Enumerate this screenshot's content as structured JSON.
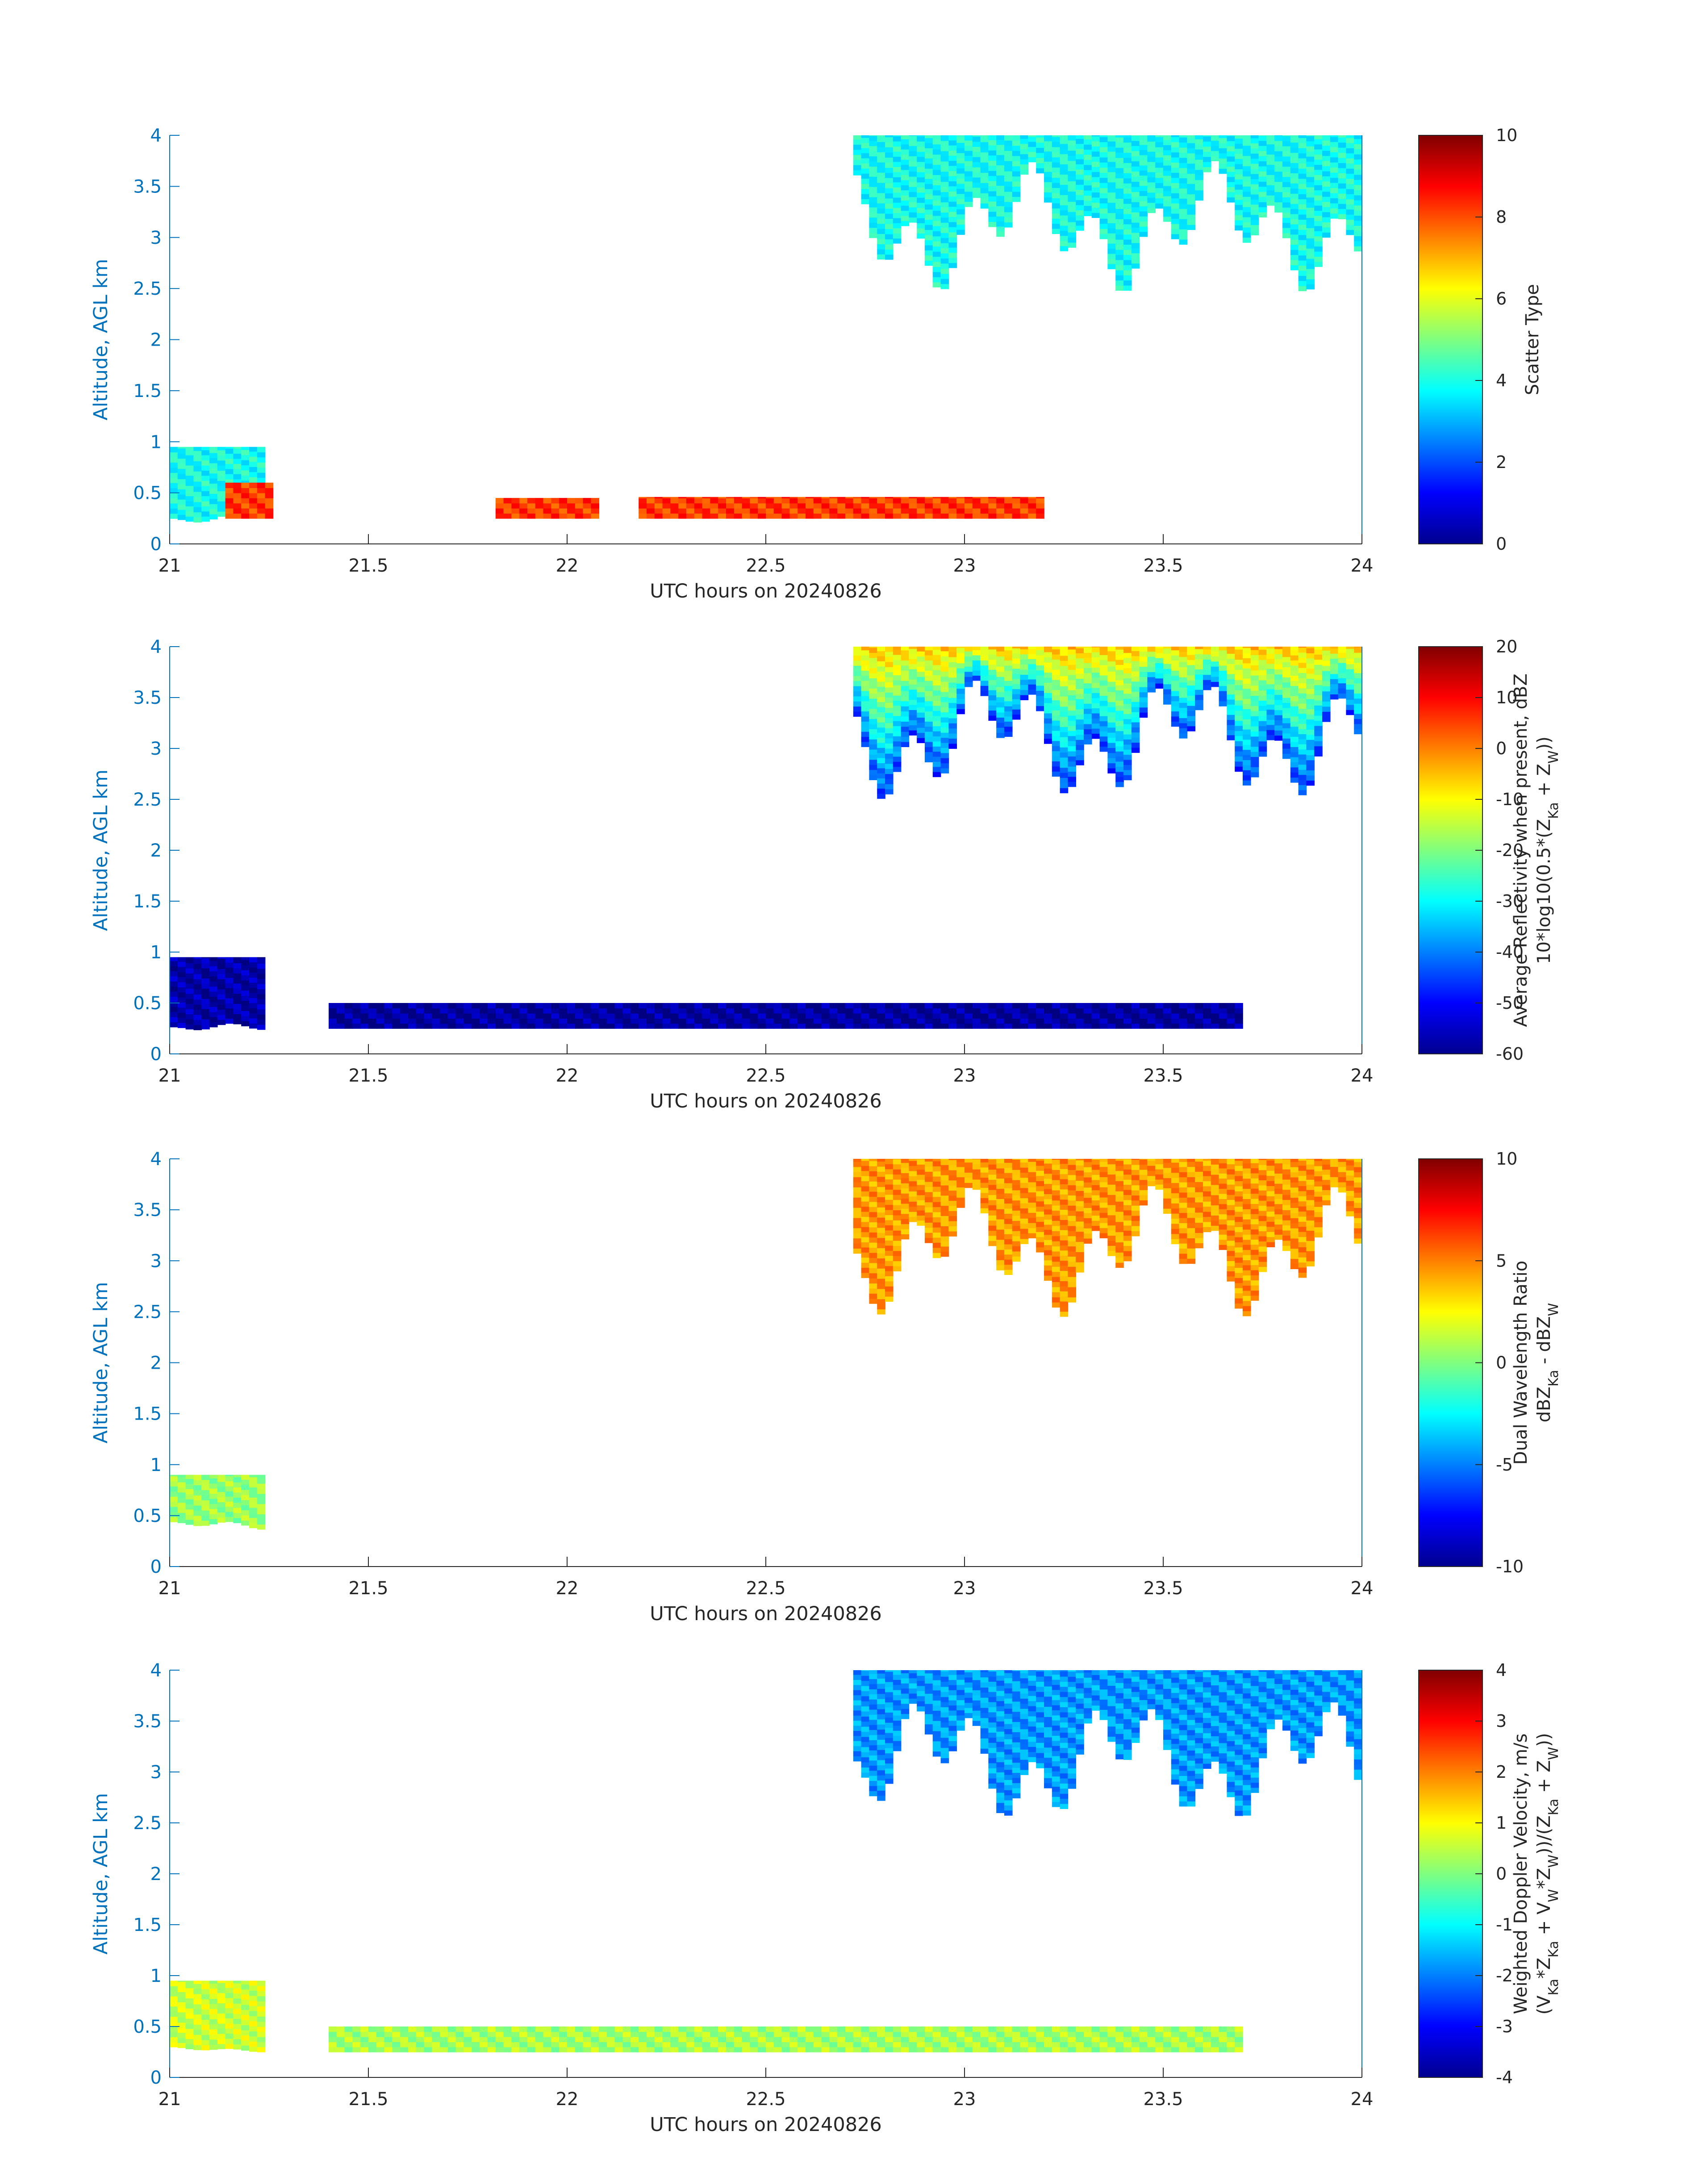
{
  "figure": {
    "panels": [
      {
        "id": "scatter-type",
        "ylabel": "Altitude, AGL km",
        "xlabel": "UTC hours on 20240826",
        "colorbar_label_lines": [
          "Scatter Type"
        ],
        "chart_data": {
          "type": "heatmap",
          "xlim": [
            21,
            24
          ],
          "ylim": [
            0,
            4
          ],
          "x_ticks": [
            "21",
            "21.5",
            "22",
            "22.5",
            "23",
            "23.5",
            "24"
          ],
          "y_ticks": [
            "0",
            "0.5",
            "1",
            "1.5",
            "2",
            "2.5",
            "3",
            "3.5",
            "4"
          ],
          "clim": [
            0,
            10
          ],
          "colorbar_ticks": [
            "0",
            "2",
            "4",
            "6",
            "8",
            "10"
          ],
          "colormap": "jet",
          "regions": [
            {
              "name": "upper-cloud",
              "x": [
                22.72,
                24.0
              ],
              "top": 4.0,
              "bottom_min": 2.45,
              "bottom_max": 3.75,
              "value": 3.9
            },
            {
              "name": "low-cloud",
              "x": [
                21.0,
                21.24
              ],
              "top": 0.95,
              "bottom_min": 0.2,
              "bottom_max": 0.3,
              "value": 3.9
            },
            {
              "name": "low-band-a",
              "x": [
                21.14,
                21.25
              ],
              "top": 0.6,
              "bottom_min": 0.25,
              "bottom_max": 0.25,
              "value": 8.2
            },
            {
              "name": "low-band-b",
              "x": [
                21.82,
                22.07
              ],
              "top": 0.45,
              "bottom_min": 0.25,
              "bottom_max": 0.25,
              "value": 8.2
            },
            {
              "name": "low-band-c",
              "x": [
                22.18,
                23.2
              ],
              "top": 0.46,
              "bottom_min": 0.25,
              "bottom_max": 0.25,
              "value": 8.2
            }
          ]
        }
      },
      {
        "id": "reflectivity",
        "ylabel": "Altitude, AGL km",
        "xlabel": "UTC hours on 20240826",
        "colorbar_label_lines": [
          "Average Reflectivity when present, dBZ",
          "10*log10(0.5*(Z_Ka + Z_W))"
        ],
        "chart_data": {
          "type": "heatmap",
          "xlim": [
            21,
            24
          ],
          "ylim": [
            0,
            4
          ],
          "x_ticks": [
            "21",
            "21.5",
            "22",
            "22.5",
            "23",
            "23.5",
            "24"
          ],
          "y_ticks": [
            "0",
            "0.5",
            "1",
            "1.5",
            "2",
            "2.5",
            "3",
            "3.5",
            "4"
          ],
          "clim": [
            -60,
            20
          ],
          "colorbar_ticks": [
            "-60",
            "-50",
            "-40",
            "-30",
            "-20",
            "-10",
            "0",
            "10",
            "20"
          ],
          "colormap": "jet",
          "regions": [
            {
              "name": "upper-cloud",
              "x": [
                22.72,
                24.0
              ],
              "top": 4.0,
              "bottom_min": 2.45,
              "bottom_max": 3.75,
              "value_top": -5,
              "value_bottom": -45
            },
            {
              "name": "low-cloud",
              "x": [
                21.0,
                21.24
              ],
              "top": 0.95,
              "bottom_min": 0.2,
              "bottom_max": 0.3,
              "value": -57
            },
            {
              "name": "low-band",
              "x": [
                21.4,
                23.7
              ],
              "top": 0.5,
              "bottom_min": 0.25,
              "bottom_max": 0.25,
              "value": -58
            }
          ]
        }
      },
      {
        "id": "dual-wavelength-ratio",
        "ylabel": "Altitude, AGL km",
        "xlabel": "UTC hours on 20240826",
        "colorbar_label_lines": [
          "Dual Wavelength Ratio",
          "dBZ_Ka - dBZ_W"
        ],
        "chart_data": {
          "type": "heatmap",
          "xlim": [
            21,
            24
          ],
          "ylim": [
            0,
            4
          ],
          "x_ticks": [
            "21",
            "21.5",
            "22",
            "22.5",
            "23",
            "23.5",
            "24"
          ],
          "y_ticks": [
            "0",
            "0.5",
            "1",
            "1.5",
            "2",
            "2.5",
            "3",
            "3.5",
            "4"
          ],
          "clim": [
            -10,
            10
          ],
          "colorbar_ticks": [
            "-10",
            "-5",
            "0",
            "5",
            "10"
          ],
          "colormap": "jet",
          "regions": [
            {
              "name": "upper-cloud",
              "x": [
                22.72,
                24.0
              ],
              "top": 4.0,
              "bottom_min": 2.45,
              "bottom_max": 3.75,
              "value": 4.5
            },
            {
              "name": "low-cloud",
              "x": [
                21.0,
                21.24
              ],
              "top": 0.9,
              "bottom_min": 0.35,
              "bottom_max": 0.45,
              "value": 0.5
            }
          ]
        }
      },
      {
        "id": "doppler-velocity",
        "ylabel": "Altitude, AGL km",
        "xlabel": "UTC hours on 20240826",
        "colorbar_label_lines": [
          "Weighted Doppler Velocity, m/s",
          "(V_Ka*Z_Ka + V_W*Z_W))/(Z_Ka + Z_W))"
        ],
        "chart_data": {
          "type": "heatmap",
          "xlim": [
            21,
            24
          ],
          "ylim": [
            0,
            4
          ],
          "x_ticks": [
            "21",
            "21.5",
            "22",
            "22.5",
            "23",
            "23.5",
            "24"
          ],
          "y_ticks": [
            "0",
            "0.5",
            "1",
            "1.5",
            "2",
            "2.5",
            "3",
            "3.5",
            "4"
          ],
          "clim": [
            -4,
            4
          ],
          "colorbar_ticks": [
            "-4",
            "-3",
            "-2",
            "-1",
            "0",
            "1",
            "2",
            "3",
            "4"
          ],
          "colormap": "jet",
          "regions": [
            {
              "name": "upper-cloud",
              "x": [
                22.72,
                24.0
              ],
              "top": 4.0,
              "bottom_min": 2.45,
              "bottom_max": 3.75,
              "value": -1.8
            },
            {
              "name": "low-cloud",
              "x": [
                21.0,
                21.24
              ],
              "top": 0.95,
              "bottom_min": 0.25,
              "bottom_max": 0.3,
              "value": 0.6
            },
            {
              "name": "low-band",
              "x": [
                21.4,
                23.7
              ],
              "top": 0.5,
              "bottom_min": 0.25,
              "bottom_max": 0.25,
              "value": 0.3
            }
          ]
        }
      }
    ]
  }
}
